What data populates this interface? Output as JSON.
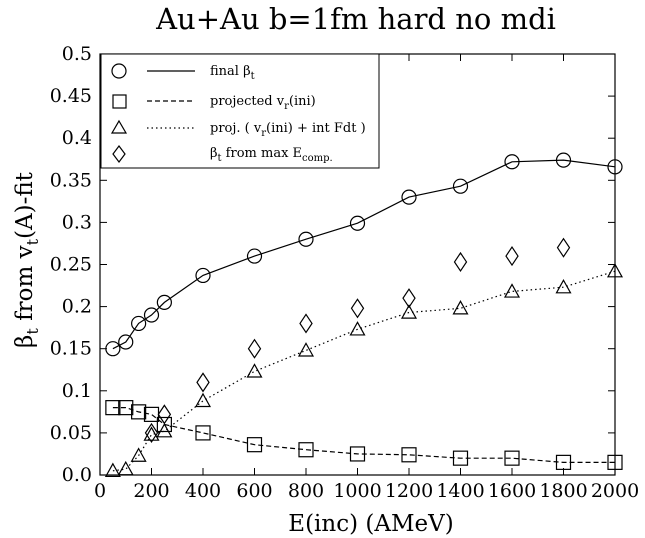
{
  "chart_data": {
    "type": "scatter",
    "title": "Au+Au b=1fm hard no mdi",
    "xlabel": "E(inc) (AMeV)",
    "ylabel": "β_t from v_t(A)-fit",
    "xlim": [
      0,
      2000
    ],
    "ylim": [
      0.0,
      0.5
    ],
    "x_ticks": [
      "0",
      "200",
      "400",
      "600",
      "800",
      "1000",
      "1200",
      "1400",
      "1600",
      "1800",
      "2000"
    ],
    "y_ticks": [
      "0.0",
      "0.05",
      "0.1",
      "0.15",
      "0.2",
      "0.25",
      "0.3",
      "0.35",
      "0.4",
      "0.45",
      "0.5"
    ],
    "grid": false,
    "legend_position": "top-left",
    "series": [
      {
        "name": "final β_t",
        "marker": "circle",
        "line": "solid",
        "points": [
          [
            50,
            0.15
          ],
          [
            100,
            0.158
          ],
          [
            150,
            0.18
          ],
          [
            200,
            0.19
          ],
          [
            250,
            0.205
          ],
          [
            400,
            0.237
          ],
          [
            600,
            0.26
          ],
          [
            800,
            0.28
          ],
          [
            1000,
            0.299
          ],
          [
            1200,
            0.33
          ],
          [
            1400,
            0.343
          ],
          [
            1600,
            0.372
          ],
          [
            1800,
            0.374
          ],
          [
            2000,
            0.366
          ]
        ]
      },
      {
        "name": "projected v_r(ini)",
        "marker": "square",
        "line": "dashed",
        "points": [
          [
            50,
            0.08
          ],
          [
            100,
            0.08
          ],
          [
            150,
            0.075
          ],
          [
            200,
            0.072
          ],
          [
            250,
            0.06
          ],
          [
            400,
            0.05
          ],
          [
            600,
            0.036
          ],
          [
            800,
            0.03
          ],
          [
            1000,
            0.025
          ],
          [
            1200,
            0.024
          ],
          [
            1400,
            0.02
          ],
          [
            1600,
            0.02
          ],
          [
            1800,
            0.015
          ],
          [
            2000,
            0.015
          ]
        ]
      },
      {
        "name": "proj. ( v_r(ini) + int Fdt )",
        "marker": "triangle",
        "line": "dotted",
        "points": [
          [
            50,
            0.005
          ],
          [
            100,
            0.007
          ],
          [
            150,
            0.023
          ],
          [
            200,
            0.048
          ],
          [
            250,
            0.052
          ],
          [
            400,
            0.088
          ],
          [
            600,
            0.123
          ],
          [
            800,
            0.148
          ],
          [
            1000,
            0.173
          ],
          [
            1200,
            0.193
          ],
          [
            1400,
            0.198
          ],
          [
            1600,
            0.218
          ],
          [
            1800,
            0.223
          ],
          [
            2000,
            0.242
          ]
        ]
      },
      {
        "name": "β_t from max E_comp.",
        "marker": "diamond",
        "line": "none",
        "points": [
          [
            200,
            0.05
          ],
          [
            250,
            0.072
          ],
          [
            400,
            0.11
          ],
          [
            600,
            0.15
          ],
          [
            800,
            0.18
          ],
          [
            1000,
            0.198
          ],
          [
            1200,
            0.21
          ],
          [
            1400,
            0.253
          ],
          [
            1600,
            0.26
          ],
          [
            1800,
            0.27
          ]
        ]
      }
    ],
    "legend_labels": {
      "final": {
        "main": "final β",
        "sub": "t"
      },
      "projected": {
        "a": "projected v",
        "sub": "r",
        "b": "(ini)"
      },
      "proj": {
        "a": "proj. ( v",
        "sub": "r",
        "b": "(ini) + int Fdt )"
      },
      "emax": {
        "a": "β",
        "sub": "t",
        "b": " from max E",
        "sub2": "comp."
      }
    },
    "ylabel_parts": {
      "a": "β",
      "sub": "t",
      "b": " from v",
      "sub2": "t",
      "c": "(A)-fit"
    }
  }
}
